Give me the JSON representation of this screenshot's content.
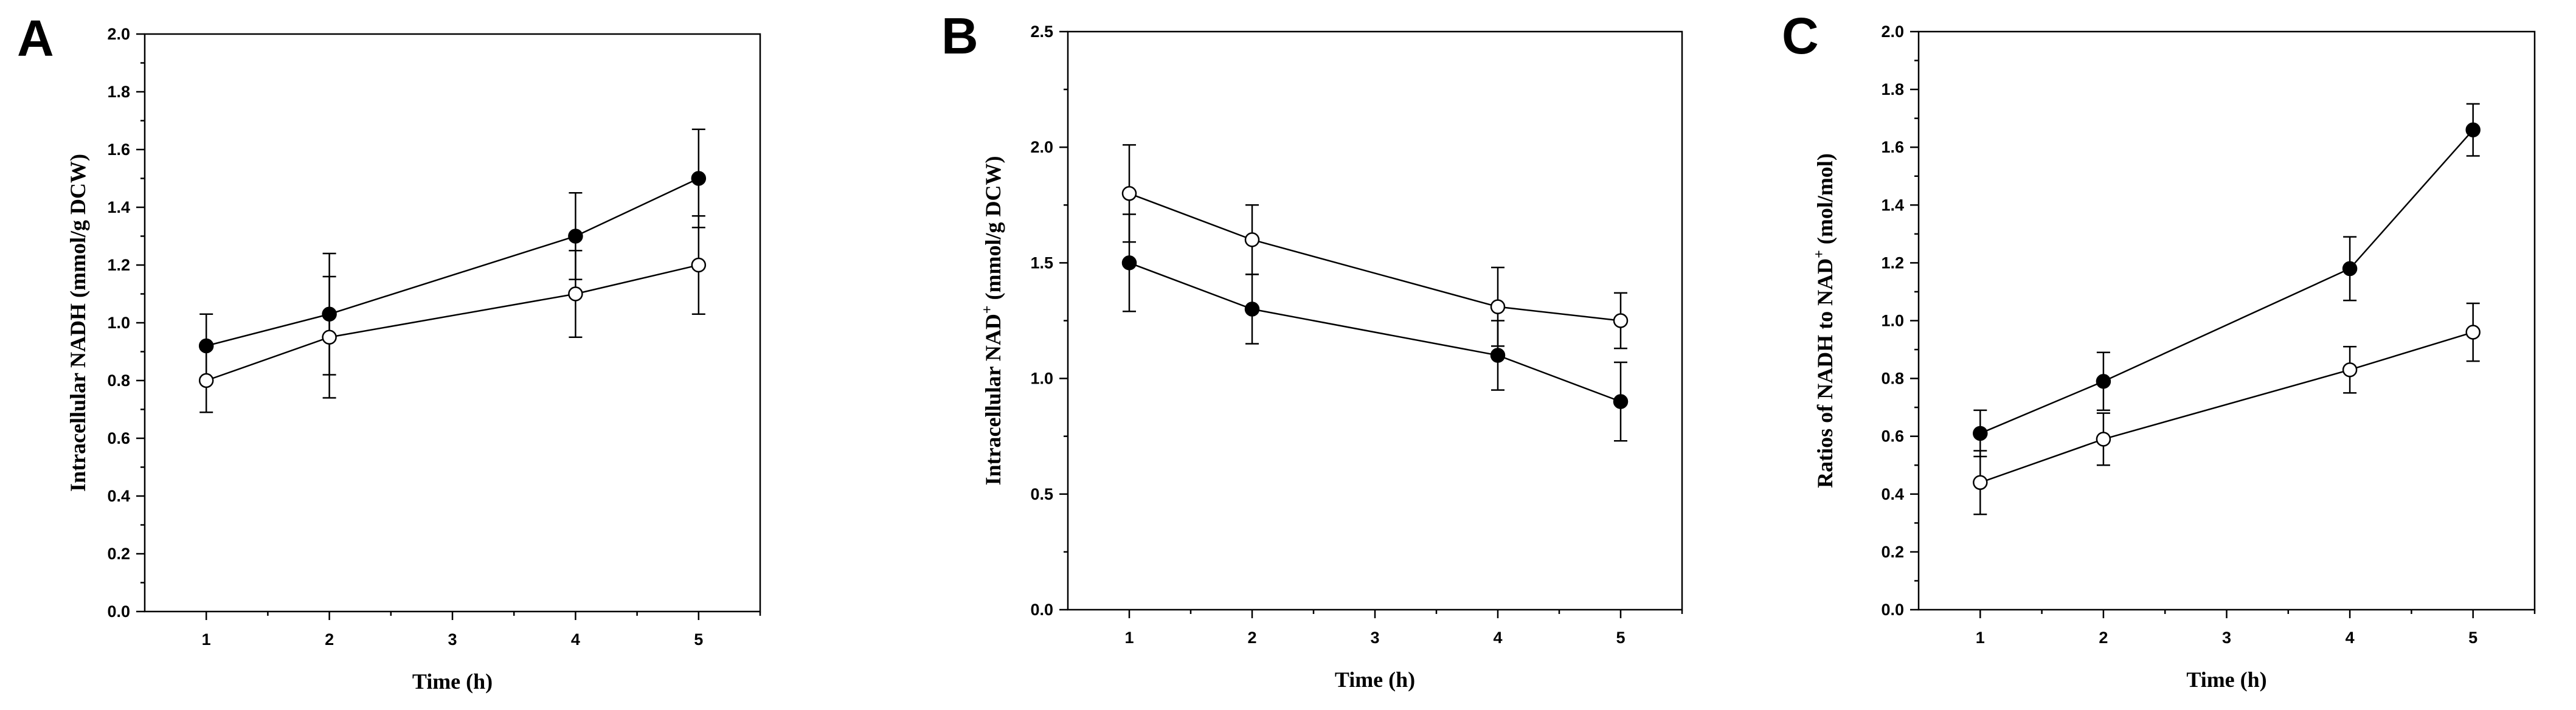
{
  "chart_data": [
    {
      "type": "line",
      "panel": "A",
      "xlabel": "Time (h)",
      "ylabel_main": "Intracellular NADH (mmol/g DCW)",
      "ylabel_parts": {
        "before": "Intracellular",
        "sup": "",
        "after": "NADH (mmol/g DCW)"
      },
      "xlim": [
        0.5,
        5.5
      ],
      "xticks": [
        1,
        2,
        3,
        4,
        5
      ],
      "ylim": [
        0,
        2.0
      ],
      "yticks": [
        "0.0",
        "0.2",
        "0.4",
        "0.6",
        "0.8",
        "1.0",
        "1.2",
        "1.4",
        "1.6",
        "1.8",
        "2.0"
      ],
      "series": [
        {
          "name": "filled",
          "marker": "filled-circle",
          "x": [
            1,
            2,
            4,
            5
          ],
          "values": [
            0.92,
            1.03,
            1.3,
            1.5
          ],
          "err": [
            0.11,
            0.21,
            0.15,
            0.17
          ]
        },
        {
          "name": "open",
          "marker": "open-circle",
          "x": [
            1,
            2,
            4,
            5
          ],
          "values": [
            0.8,
            0.95,
            1.1,
            1.2
          ],
          "err": [
            0.11,
            0.21,
            0.15,
            0.17
          ]
        }
      ]
    },
    {
      "type": "line",
      "panel": "B",
      "xlabel": "Time (h)",
      "ylabel_main": "Intracellular NAD+ (mmol/g DCW)",
      "ylabel_parts": {
        "before": "Intracellular NAD",
        "sup": "+",
        "after": " (mmol/g DCW)"
      },
      "xlim": [
        0.5,
        5.5
      ],
      "xticks": [
        1,
        2,
        3,
        4,
        5
      ],
      "ylim": [
        0,
        2.5
      ],
      "yticks": [
        "0.0",
        "0.5",
        "1.0",
        "1.5",
        "2.0",
        "2.5"
      ],
      "series": [
        {
          "name": "filled",
          "marker": "filled-circle",
          "x": [
            1,
            2,
            4,
            5
          ],
          "values": [
            1.5,
            1.3,
            1.1,
            0.9
          ],
          "err": [
            0.21,
            0.15,
            0.15,
            0.17
          ]
        },
        {
          "name": "open",
          "marker": "open-circle",
          "x": [
            1,
            2,
            4,
            5
          ],
          "values": [
            1.8,
            1.6,
            1.31,
            1.25
          ],
          "err": [
            0.21,
            0.15,
            0.17,
            0.12
          ]
        }
      ]
    },
    {
      "type": "line",
      "panel": "C",
      "xlabel": "Time (h)",
      "ylabel_main": "Ratios of NADH to NAD+ (mol/mol)",
      "ylabel_parts": {
        "before": "Ratios of NADH to NAD",
        "sup": "+",
        "after": " (mol/mol)"
      },
      "xlim": [
        0.5,
        5.5
      ],
      "xticks": [
        1,
        2,
        3,
        4,
        5
      ],
      "ylim": [
        0,
        2.0
      ],
      "yticks": [
        "0.0",
        "0.2",
        "0.4",
        "0.6",
        "0.8",
        "1.0",
        "1.2",
        "1.4",
        "1.6",
        "1.8",
        "2.0"
      ],
      "series": [
        {
          "name": "filled",
          "marker": "filled-circle",
          "x": [
            1,
            2,
            4,
            5
          ],
          "values": [
            0.61,
            0.79,
            1.18,
            1.66
          ],
          "err": [
            0.08,
            0.1,
            0.11,
            0.09
          ]
        },
        {
          "name": "open",
          "marker": "open-circle",
          "x": [
            1,
            2,
            4,
            5
          ],
          "values": [
            0.44,
            0.59,
            0.83,
            0.96
          ],
          "err": [
            0.11,
            0.09,
            0.08,
            0.1
          ]
        }
      ]
    }
  ]
}
